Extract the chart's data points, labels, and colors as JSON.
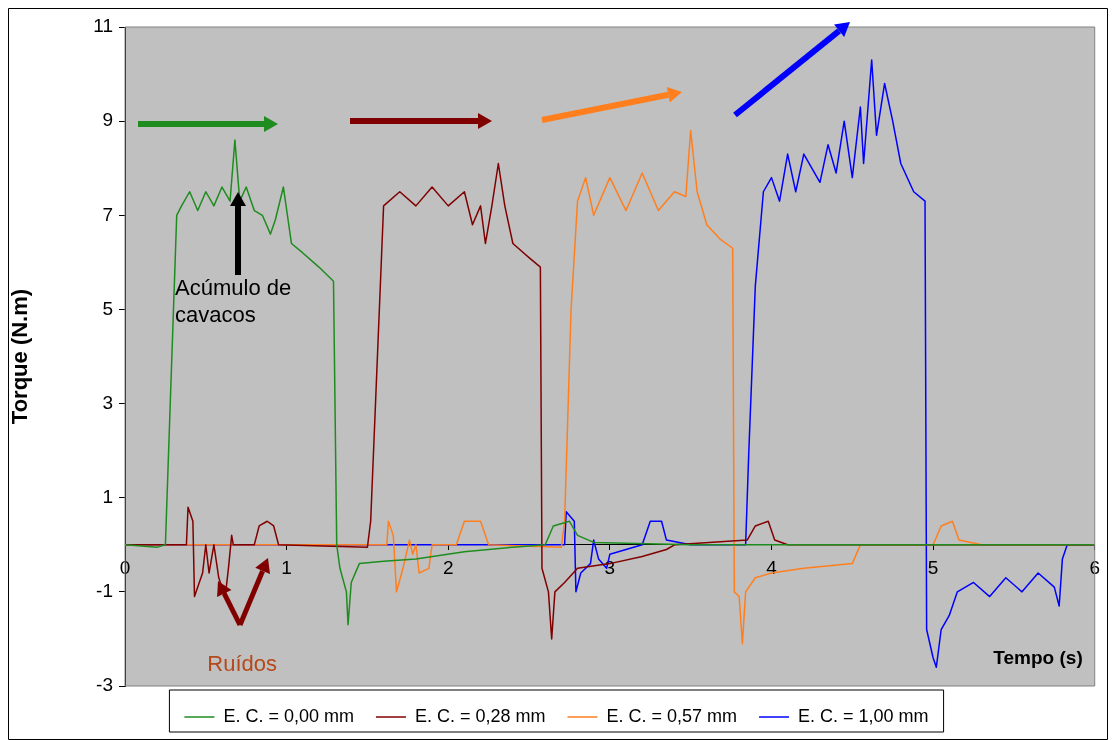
{
  "chart_data": {
    "type": "line",
    "xlabel": "Tempo (s)",
    "ylabel": "Torque (N.m)",
    "xlim": [
      0,
      6
    ],
    "xticks": [
      0,
      1,
      2,
      3,
      4,
      5,
      6
    ],
    "ylim": [
      -3,
      11
    ],
    "yticks": [
      -3,
      -1,
      1,
      3,
      5,
      7,
      9,
      11
    ],
    "legend": "bottom",
    "marker": "none",
    "line_style": "solid",
    "annotations": [
      {
        "text": "Acúmulo de cavacos",
        "x": 0.7,
        "y": 7.2
      },
      {
        "text": "Ruídos",
        "x": 0.62,
        "y": -1.1
      }
    ],
    "series": [
      {
        "name": "E. C. = 0,00 mm",
        "color": "#1e8c1e",
        "x": [
          0,
          0.2,
          0.25,
          0.28,
          0.32,
          0.35,
          0.4,
          0.45,
          0.5,
          0.55,
          0.6,
          0.65,
          0.68,
          0.71,
          0.75,
          0.8,
          0.85,
          0.9,
          0.93,
          0.98,
          1.03,
          1.1,
          1.2,
          1.29,
          1.31,
          1.33,
          1.37,
          1.38,
          1.4,
          1.45,
          1.6,
          1.8,
          2.1,
          2.4,
          2.6,
          2.65,
          2.75,
          2.8,
          2.9,
          3.5,
          4.0,
          6
        ],
        "values": [
          0,
          -0.05,
          0,
          3,
          7,
          7.2,
          7.5,
          7.1,
          7.5,
          7.2,
          7.6,
          7.3,
          8.6,
          7.3,
          7.6,
          7.1,
          7.0,
          6.6,
          6.9,
          7.6,
          6.4,
          6.2,
          5.9,
          5.6,
          0,
          -0.5,
          -1.0,
          -1.7,
          -0.8,
          -0.4,
          -0.35,
          -0.3,
          -0.15,
          -0.05,
          0,
          0.4,
          0.5,
          0.2,
          0.05,
          0,
          0,
          0
        ]
      },
      {
        "name": "E. C. = 0,28 mm",
        "color": "#800000",
        "x": [
          0,
          0.38,
          0.39,
          0.42,
          0.43,
          0.48,
          0.5,
          0.52,
          0.55,
          0.58,
          0.62,
          0.64,
          0.66,
          0.67,
          0.8,
          0.83,
          0.88,
          0.92,
          0.95,
          1.5,
          1.52,
          1.55,
          1.6,
          1.7,
          1.8,
          1.9,
          2.0,
          2.1,
          2.15,
          2.2,
          2.23,
          2.27,
          2.31,
          2.35,
          2.4,
          2.5,
          2.57,
          2.58,
          2.62,
          2.64,
          2.66,
          2.72,
          2.8,
          3.0,
          3.2,
          3.35,
          3.4,
          3.85,
          3.9,
          3.98,
          4.02,
          4.1,
          6
        ],
        "values": [
          0,
          0,
          0.8,
          0.5,
          -1.1,
          -0.6,
          0,
          -0.6,
          0,
          -0.7,
          -1.1,
          -0.5,
          0.2,
          0,
          0,
          0.4,
          0.5,
          0.4,
          0,
          -0.05,
          0.5,
          3,
          7.2,
          7.5,
          7.2,
          7.6,
          7.2,
          7.5,
          6.8,
          7.2,
          6.4,
          7.2,
          8.1,
          7.2,
          6.4,
          6.1,
          5.9,
          -0.5,
          -1.0,
          -2.0,
          -1.0,
          -0.8,
          -0.5,
          -0.4,
          -0.25,
          -0.1,
          0,
          0.1,
          0.4,
          0.5,
          0.1,
          0,
          0
        ]
      },
      {
        "name": "E. C. = 0,57 mm",
        "color": "#ff7f1e",
        "x": [
          0,
          1.62,
          1.63,
          1.66,
          1.68,
          1.72,
          1.76,
          1.78,
          1.8,
          1.82,
          1.88,
          1.9,
          2.05,
          2.1,
          2.2,
          2.25,
          2.7,
          2.72,
          2.76,
          2.8,
          2.85,
          2.9,
          3.0,
          3.1,
          3.2,
          3.3,
          3.4,
          3.47,
          3.5,
          3.54,
          3.6,
          3.68,
          3.76,
          3.77,
          3.8,
          3.82,
          3.84,
          3.9,
          4.0,
          4.2,
          4.5,
          4.55,
          5.0,
          5.05,
          5.12,
          5.16,
          5.3,
          6
        ],
        "values": [
          0,
          0,
          0.5,
          0.2,
          -1.0,
          -0.5,
          0.1,
          -0.2,
          0,
          -0.6,
          -0.5,
          0,
          0,
          0.5,
          0.5,
          0,
          -0.05,
          0.5,
          5,
          7.3,
          7.8,
          7.0,
          7.8,
          7.1,
          7.9,
          7.1,
          7.5,
          7.4,
          8.8,
          7.5,
          6.8,
          6.5,
          6.3,
          -1.0,
          -1.1,
          -2.1,
          -1.0,
          -0.7,
          -0.6,
          -0.5,
          -0.4,
          0,
          0,
          0.4,
          0.5,
          0.1,
          0,
          0
        ]
      },
      {
        "name": "E. C. = 1,00 mm",
        "color": "#0000ff",
        "x": [
          0,
          2.72,
          2.73,
          2.78,
          2.79,
          2.82,
          2.88,
          2.9,
          2.93,
          2.98,
          3.0,
          3.2,
          3.25,
          3.32,
          3.35,
          3.5,
          3.84,
          3.86,
          3.9,
          3.95,
          4.0,
          4.05,
          4.1,
          4.15,
          4.2,
          4.3,
          4.35,
          4.4,
          4.45,
          4.5,
          4.55,
          4.57,
          4.62,
          4.65,
          4.7,
          4.75,
          4.8,
          4.88,
          4.95,
          4.96,
          5.0,
          5.02,
          5.05,
          5.1,
          5.15,
          5.25,
          5.35,
          5.45,
          5.55,
          5.65,
          5.75,
          5.78,
          5.8,
          5.83,
          6
        ],
        "values": [
          0,
          0,
          0.7,
          0.5,
          -1.0,
          -0.6,
          -0.4,
          0.1,
          -0.3,
          -0.5,
          -0.2,
          0,
          0.5,
          0.5,
          0.1,
          0,
          0,
          2,
          5.5,
          7.5,
          7.8,
          7.3,
          8.3,
          7.5,
          8.3,
          7.7,
          8.5,
          7.9,
          9.0,
          7.8,
          9.3,
          8.1,
          10.3,
          8.7,
          9.8,
          9.0,
          8.1,
          7.5,
          7.3,
          -1.8,
          -2.4,
          -2.6,
          -1.8,
          -1.5,
          -1.0,
          -0.8,
          -1.1,
          -0.7,
          -1.0,
          -0.6,
          -0.9,
          -1.3,
          -0.3,
          0,
          0
        ]
      }
    ]
  }
}
